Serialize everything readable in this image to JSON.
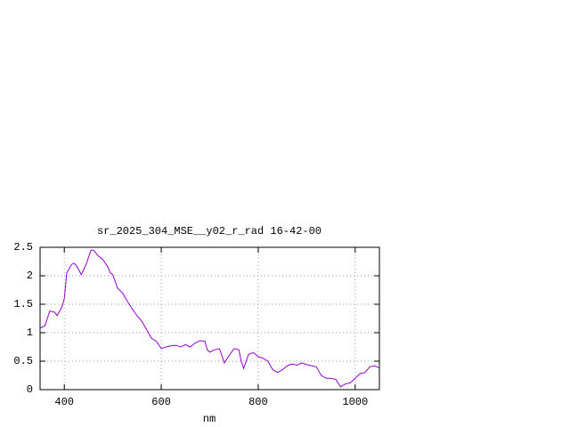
{
  "chart_data": {
    "type": "line",
    "title": "sr_2025_304_MSE__y02_r_rad 16-42-00",
    "x_label": "nm",
    "x": [
      350,
      360,
      370,
      380,
      385,
      395,
      400,
      405,
      415,
      420,
      425,
      435,
      445,
      455,
      460,
      470,
      480,
      490,
      495,
      500,
      510,
      520,
      530,
      540,
      550,
      560,
      570,
      580,
      590,
      600,
      610,
      620,
      630,
      640,
      650,
      660,
      670,
      680,
      690,
      695,
      700,
      710,
      720,
      725,
      730,
      740,
      750,
      760,
      765,
      770,
      780,
      790,
      800,
      810,
      820,
      830,
      840,
      850,
      860,
      870,
      880,
      890,
      900,
      910,
      920,
      930,
      940,
      950,
      960,
      970,
      980,
      990,
      1000,
      1010,
      1020,
      1030,
      1040,
      1050
    ],
    "series": [
      {
        "color": "#9400d3",
        "values": [
          1.08,
          1.12,
          1.38,
          1.36,
          1.3,
          1.45,
          1.6,
          2.05,
          2.2,
          2.22,
          2.18,
          2.02,
          2.2,
          2.45,
          2.45,
          2.35,
          2.28,
          2.15,
          2.05,
          2.02,
          1.78,
          1.7,
          1.55,
          1.42,
          1.3,
          1.2,
          1.05,
          0.9,
          0.85,
          0.72,
          0.75,
          0.77,
          0.78,
          0.75,
          0.79,
          0.75,
          0.82,
          0.86,
          0.85,
          0.7,
          0.66,
          0.7,
          0.72,
          0.6,
          0.47,
          0.6,
          0.72,
          0.7,
          0.5,
          0.37,
          0.62,
          0.65,
          0.58,
          0.55,
          0.5,
          0.35,
          0.3,
          0.35,
          0.42,
          0.45,
          0.43,
          0.47,
          0.44,
          0.42,
          0.4,
          0.25,
          0.2,
          0.2,
          0.18,
          0.05,
          0.1,
          0.12,
          0.2,
          0.28,
          0.3,
          0.4,
          0.42,
          0.38
        ]
      }
    ],
    "xlim": [
      350,
      1050
    ],
    "xticks": [
      400,
      600,
      800,
      1000
    ],
    "ylim": [
      0,
      2.5
    ],
    "yticks": [
      0,
      0.5,
      1,
      1.5,
      2,
      2.5
    ],
    "grid": true
  }
}
